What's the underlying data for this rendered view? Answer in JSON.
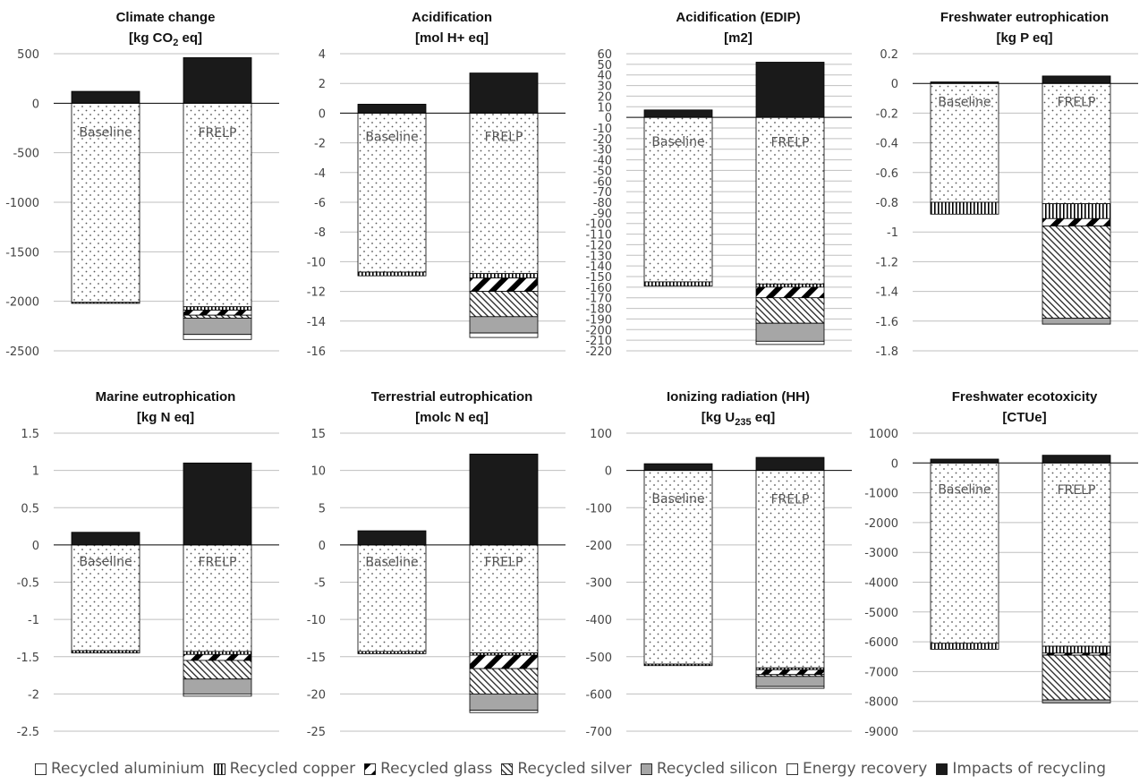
{
  "patterns": {
    "aluminium": "white",
    "copper": "vertical",
    "glass": "diagonal-thick",
    "silver": "diagonal-thin",
    "silicon": "solid-gray",
    "energy": "white",
    "impacts": "solid-black",
    "base": "dots"
  },
  "colors": {
    "impacts": "#1a1a1a",
    "silicon": "#a6a6a6",
    "grid": "#bfbfbf",
    "axis": "#000000",
    "text": "#404040"
  },
  "legend": [
    {
      "key": "aluminium",
      "label": "Recycled aluminium"
    },
    {
      "key": "copper",
      "label": "Recycled copper"
    },
    {
      "key": "glass",
      "label": "Recycled glass"
    },
    {
      "key": "silver",
      "label": "Recycled silver"
    },
    {
      "key": "silicon",
      "label": "Recycled silicon"
    },
    {
      "key": "energy",
      "label": "Energy recovery"
    },
    {
      "key": "impacts",
      "label": "Impacts of recycling"
    }
  ],
  "chart_data": [
    {
      "type": "bar",
      "title": "Climate change",
      "unit_html": "[kg CO<tspan font-size='11' dy='4'>2</tspan><tspan dy='-4'> eq]</tspan>",
      "ylim": [
        -2500,
        500
      ],
      "ticks": [
        500,
        0,
        -500,
        -1000,
        -1500,
        -2000,
        -2500
      ],
      "bars": [
        {
          "name": "Baseline",
          "top": 120,
          "base": -2010,
          "segments": [
            {
              "key": "copper",
              "value": -2010,
              "to": -2020
            }
          ]
        },
        {
          "name": "FRELP",
          "top": 460,
          "base": -2055,
          "segments": [
            {
              "key": "copper",
              "from": -2055,
              "to": -2090
            },
            {
              "key": "glass",
              "from": -2090,
              "to": -2140
            },
            {
              "key": "silver",
              "from": -2140,
              "to": -2170
            },
            {
              "key": "silicon",
              "from": -2170,
              "to": -2335
            },
            {
              "key": "energy",
              "from": -2335,
              "to": -2385
            }
          ]
        }
      ]
    },
    {
      "type": "bar",
      "title": "Acidification",
      "unit_html": "[mol H+ eq]",
      "ylim": [
        -16,
        4
      ],
      "ticks": [
        4,
        2,
        0,
        -2,
        -4,
        -6,
        -8,
        -10,
        -12,
        -14,
        -16
      ],
      "bars": [
        {
          "name": "Baseline",
          "top": 0.6,
          "base": -10.7,
          "segments": [
            {
              "key": "copper",
              "from": -10.7,
              "to": -10.95
            }
          ]
        },
        {
          "name": "FRELP",
          "top": 2.7,
          "base": -10.8,
          "segments": [
            {
              "key": "copper",
              "from": -10.8,
              "to": -11.1
            },
            {
              "key": "glass",
              "from": -11.1,
              "to": -12.0
            },
            {
              "key": "silver",
              "from": -12.0,
              "to": -13.7
            },
            {
              "key": "silicon",
              "from": -13.7,
              "to": -14.8
            },
            {
              "key": "energy",
              "from": -14.8,
              "to": -15.1
            }
          ]
        }
      ]
    },
    {
      "type": "bar",
      "title": "Acidification  (EDIP)",
      "unit_html": "[m2]",
      "ylim": [
        -220,
        60
      ],
      "ticks": [
        60,
        50,
        40,
        30,
        20,
        10,
        0,
        -10,
        -20,
        -30,
        -40,
        -50,
        -60,
        -70,
        -80,
        -90,
        -100,
        -110,
        -120,
        -130,
        -140,
        -150,
        -160,
        -170,
        -180,
        -190,
        -200,
        -210,
        -220
      ],
      "bars": [
        {
          "name": "Baseline",
          "top": 7,
          "base": -155,
          "segments": [
            {
              "key": "copper",
              "from": -155,
              "to": -159
            }
          ]
        },
        {
          "name": "FRELP",
          "top": 52,
          "base": -157,
          "segments": [
            {
              "key": "copper",
              "from": -157,
              "to": -160
            },
            {
              "key": "glass",
              "from": -160,
              "to": -170
            },
            {
              "key": "silver",
              "from": -170,
              "to": -194
            },
            {
              "key": "silicon",
              "from": -194,
              "to": -211
            },
            {
              "key": "energy",
              "from": -211,
              "to": -214
            }
          ]
        }
      ]
    },
    {
      "type": "bar",
      "title": "Freshwater eutrophication",
      "unit_html": "[kg P eq]",
      "ylim": [
        -1.8,
        0.2
      ],
      "ticks": [
        0.2,
        0,
        -0.2,
        -0.4,
        -0.6,
        -0.8,
        -1,
        -1.2,
        -1.4,
        -1.6,
        -1.8
      ],
      "bars": [
        {
          "name": "Baseline",
          "top": 0.01,
          "base": -0.8,
          "segments": [
            {
              "key": "copper",
              "from": -0.8,
              "to": -0.88
            }
          ]
        },
        {
          "name": "FRELP",
          "top": 0.05,
          "base": -0.81,
          "segments": [
            {
              "key": "copper",
              "from": -0.81,
              "to": -0.91
            },
            {
              "key": "glass",
              "from": -0.91,
              "to": -0.96
            },
            {
              "key": "silver",
              "from": -0.96,
              "to": -1.58
            },
            {
              "key": "silicon",
              "from": -1.58,
              "to": -1.62
            }
          ]
        }
      ]
    },
    {
      "type": "bar",
      "title": "Marine eutrophication",
      "unit_html": "[kg N eq]",
      "ylim": [
        -2.5,
        1.5
      ],
      "ticks": [
        1.5,
        1,
        0.5,
        0,
        -0.5,
        -1,
        -1.5,
        -2,
        -2.5
      ],
      "bars": [
        {
          "name": "Baseline",
          "top": 0.17,
          "base": -1.42,
          "segments": [
            {
              "key": "copper",
              "from": -1.42,
              "to": -1.45
            }
          ]
        },
        {
          "name": "FRELP",
          "top": 1.1,
          "base": -1.43,
          "segments": [
            {
              "key": "copper",
              "from": -1.43,
              "to": -1.47
            },
            {
              "key": "glass",
              "from": -1.47,
              "to": -1.55
            },
            {
              "key": "silver",
              "from": -1.55,
              "to": -1.8
            },
            {
              "key": "silicon",
              "from": -1.8,
              "to": -2.0
            },
            {
              "key": "energy",
              "from": -2.0,
              "to": -2.03
            }
          ]
        }
      ]
    },
    {
      "type": "bar",
      "title": "Terrestrial eutrophication",
      "unit_html": "[molc N eq]",
      "ylim": [
        -25,
        15
      ],
      "ticks": [
        15,
        10,
        5,
        0,
        -5,
        -10,
        -15,
        -20,
        -25
      ],
      "bars": [
        {
          "name": "Baseline",
          "top": 1.9,
          "base": -14.3,
          "segments": [
            {
              "key": "copper",
              "from": -14.3,
              "to": -14.6
            }
          ]
        },
        {
          "name": "FRELP",
          "top": 12.2,
          "base": -14.5,
          "segments": [
            {
              "key": "copper",
              "from": -14.5,
              "to": -14.8
            },
            {
              "key": "glass",
              "from": -14.8,
              "to": -16.6
            },
            {
              "key": "silver",
              "from": -16.6,
              "to": -20.0
            },
            {
              "key": "silicon",
              "from": -20.0,
              "to": -22.2
            },
            {
              "key": "energy",
              "from": -22.2,
              "to": -22.5
            }
          ]
        }
      ]
    },
    {
      "type": "bar",
      "title": "Ionizing radiation (HH)",
      "unit_html": "[kg U<tspan font-size='11' dy='4'>235</tspan><tspan dy='-4'> eq]</tspan>",
      "ylim": [
        -700,
        100
      ],
      "ticks": [
        100,
        0,
        -100,
        -200,
        -300,
        -400,
        -500,
        -600,
        -700
      ],
      "bars": [
        {
          "name": "Baseline",
          "top": 18,
          "base": -520,
          "segments": [
            {
              "key": "copper",
              "from": -520,
              "to": -524
            }
          ]
        },
        {
          "name": "FRELP",
          "top": 35,
          "base": -530,
          "segments": [
            {
              "key": "copper",
              "from": -530,
              "to": -535
            },
            {
              "key": "glass",
              "from": -535,
              "to": -548
            },
            {
              "key": "silver",
              "from": -548,
              "to": -553
            },
            {
              "key": "silicon",
              "from": -553,
              "to": -580
            },
            {
              "key": "energy",
              "from": -580,
              "to": -585
            }
          ]
        }
      ]
    },
    {
      "type": "bar",
      "title": "Freshwater ecotoxicity",
      "unit_html": "[CTUe]",
      "ylim": [
        -9000,
        1000
      ],
      "ticks": [
        1000,
        0,
        -1000,
        -2000,
        -3000,
        -4000,
        -5000,
        -6000,
        -7000,
        -8000,
        -9000
      ],
      "bars": [
        {
          "name": "Baseline",
          "top": 130,
          "base": -6050,
          "segments": [
            {
              "key": "copper",
              "from": -6050,
              "to": -6250
            }
          ]
        },
        {
          "name": "FRELP",
          "top": 260,
          "base": -6150,
          "segments": [
            {
              "key": "copper",
              "from": -6150,
              "to": -6380
            },
            {
              "key": "glass",
              "from": -6380,
              "to": -6450
            },
            {
              "key": "silver",
              "from": -6450,
              "to": -7950
            },
            {
              "key": "silicon",
              "from": -7950,
              "to": -8050
            }
          ]
        }
      ]
    }
  ]
}
